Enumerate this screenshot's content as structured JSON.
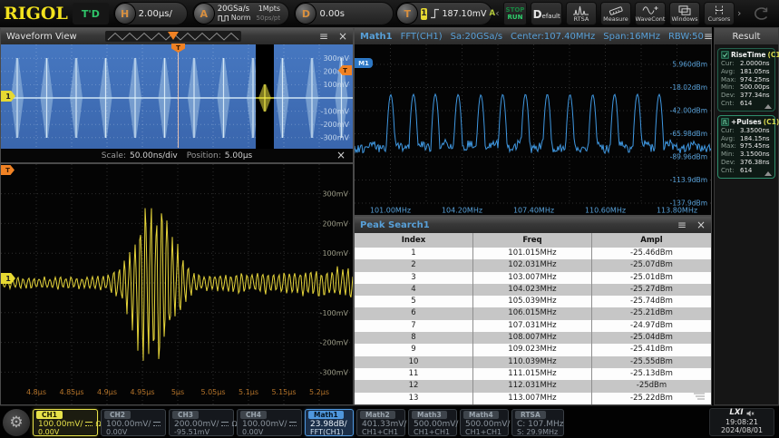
{
  "toolbar": {
    "logo": "RIGOL",
    "trigger_status": "T'D",
    "horizontal": {
      "knob": "H",
      "scale": "2.00μs/"
    },
    "acquire": {
      "knob": "A",
      "rate": "20GSa/s",
      "mode": "Norm",
      "depth": "1Mpts",
      "resolution": "50ps/pt"
    },
    "delay": {
      "knob": "D",
      "value": "0.00s"
    },
    "trigger": {
      "knob": "T",
      "source": "1",
      "level": "187.10mV",
      "mode": "A"
    },
    "nav_left": "‹",
    "nav_right": "›",
    "run_control": {
      "line1": "STOP",
      "line2": "RUN"
    },
    "default_button": {
      "initial": "D",
      "rest": "efault"
    },
    "icon_buttons": [
      {
        "label": "RTSA",
        "icon": "rtsa-spectrum-icon"
      },
      {
        "label": "Measure",
        "icon": "measure-ruler-icon"
      },
      {
        "label": "WaveCont",
        "icon": "wave-continuous-icon"
      },
      {
        "label": "Windows",
        "icon": "windows-layout-icon"
      },
      {
        "label": "Cursors",
        "icon": "cursors-icon"
      }
    ]
  },
  "waveform_view": {
    "title": "Waveform View",
    "menu_icon": "≡",
    "close_icon": "×",
    "y_labels": [
      "300mV",
      "200mV",
      "100mV",
      "-100mV",
      "-200mV",
      "-300mV"
    ],
    "channel_tag": "1",
    "trigger_tag": "T"
  },
  "zoom_bar": {
    "scale_label": "Scale:",
    "scale_value": "50.00ns/div",
    "position_label": "Position:",
    "position_value": "5.00μs",
    "close_icon": "×"
  },
  "zoom_view": {
    "x_labels": [
      "4.8μs",
      "4.85μs",
      "4.9μs",
      "4.95μs",
      "5μs",
      "5.05μs",
      "5.1μs",
      "5.15μs",
      "5.2μs"
    ],
    "y_labels": [
      "300mV",
      "200mV",
      "100mV",
      "-100mV",
      "-200mV",
      "-300mV"
    ],
    "channel_tag": "1",
    "trigger_tag": "T"
  },
  "math_window": {
    "title": "Math1",
    "segments": [
      "FFT(CH1)",
      "Sa:20GSa/s",
      "Center:107.40MHz",
      "Span:16MHz",
      "RBW:50"
    ],
    "marker": "M1",
    "menu_icon": "≡",
    "close_icon": "×",
    "y_labels": [
      "5.960dBm",
      "-18.02dBm",
      "-42.00dBm",
      "-65.98dBm",
      "-89.96dBm",
      "-113.9dBm",
      "-137.9dBm"
    ],
    "x_labels": [
      "101.00MHz",
      "104.20MHz",
      "107.40MHz",
      "110.60MHz",
      "113.80MHz"
    ]
  },
  "peak_search": {
    "title": "Peak Search1",
    "menu_icon": "≡",
    "close_icon": "×",
    "columns": [
      "Index",
      "Freq",
      "Ampl"
    ],
    "rows": [
      [
        "1",
        "101.015MHz",
        "-25.46dBm"
      ],
      [
        "2",
        "102.031MHz",
        "-25.07dBm"
      ],
      [
        "3",
        "103.007MHz",
        "-25.01dBm"
      ],
      [
        "4",
        "104.023MHz",
        "-25.27dBm"
      ],
      [
        "5",
        "105.039MHz",
        "-25.74dBm"
      ],
      [
        "6",
        "106.015MHz",
        "-25.21dBm"
      ],
      [
        "7",
        "107.031MHz",
        "-24.97dBm"
      ],
      [
        "8",
        "108.007MHz",
        "-25.04dBm"
      ],
      [
        "9",
        "109.023MHz",
        "-25.41dBm"
      ],
      [
        "10",
        "110.039MHz",
        "-25.55dBm"
      ],
      [
        "11",
        "111.015MHz",
        "-25.13dBm"
      ],
      [
        "12",
        "112.031MHz",
        "-25dBm"
      ],
      [
        "13",
        "113.007MHz",
        "-25.22dBm"
      ]
    ]
  },
  "result_panel": {
    "title": "Result",
    "measurements": [
      {
        "icon": "checkbox-checked-icon",
        "name": "RiseTime",
        "source": "(C1)",
        "stats": [
          [
            "Cur:",
            "2.0000ns"
          ],
          [
            "Avg:",
            "181.05ns"
          ],
          [
            "Max:",
            "974.25ns"
          ],
          [
            "Min:",
            "500.00ps"
          ],
          [
            "Dev:",
            "377.34ns"
          ],
          [
            "Cnt:",
            "614"
          ]
        ]
      },
      {
        "icon": "pulse-icon",
        "name": "+Pulses",
        "source": "(C1)",
        "stats": [
          [
            "Cur:",
            "3.3500ns"
          ],
          [
            "Avg:",
            "184.15ns"
          ],
          [
            "Max:",
            "975.45ns"
          ],
          [
            "Min:",
            "3.1500ns"
          ],
          [
            "Dev:",
            "376.38ns"
          ],
          [
            "Cnt:",
            "614"
          ]
        ]
      }
    ]
  },
  "bottom_bar": {
    "channels": [
      {
        "name": "CH1",
        "scale": "100.00mV/",
        "dc": true,
        "ohm": true,
        "offset": "0.00V",
        "active": true
      },
      {
        "name": "CH2",
        "scale": "100.00mV/",
        "dc": true,
        "ohm": false,
        "offset": "0.00V",
        "active": false
      },
      {
        "name": "CH3",
        "scale": "200.00mV/",
        "dc": true,
        "ohm": true,
        "offset": "-95.51mV",
        "active": false
      },
      {
        "name": "CH4",
        "scale": "100.00mV/",
        "dc": true,
        "ohm": false,
        "offset": "0.00V",
        "active": false
      }
    ],
    "maths": [
      {
        "name": "Math1",
        "line1": "23.98dB/",
        "line2": "FFT(CH1)",
        "active": true
      },
      {
        "name": "Math2",
        "line1": "401.33mV/",
        "line2": "CH1+CH1",
        "active": false
      },
      {
        "name": "Math3",
        "line1": "500.00mV/",
        "line2": "CH1+CH1",
        "active": false
      },
      {
        "name": "Math4",
        "line1": "500.00mV/",
        "line2": "CH1+CH1",
        "active": false
      },
      {
        "name": "RTSA",
        "line1": "C: 107.MHz",
        "line2": "S: 29.9MHz",
        "active": false
      }
    ],
    "status": {
      "lxi": "LXI",
      "time": "19:08:21",
      "date": "2024/08/01"
    }
  },
  "chart_data": [
    {
      "id": "waveform_view",
      "type": "line",
      "y_ticks_mV": [
        300,
        200,
        100,
        -100,
        -200,
        -300
      ],
      "description": "CH1 periodic RF burst train, 12 bursts visible across 20μs, baseline 0V, burst amplitude ±300mV",
      "burst_count": 12,
      "trigger_level_mV": 187.1,
      "zoom_region": {
        "center_fraction": 0.75,
        "highlight": "yellow burst inside black band"
      }
    },
    {
      "id": "zoom_view",
      "type": "line",
      "x_ticks_us": [
        4.8,
        4.85,
        4.9,
        4.95,
        5.0,
        5.05,
        5.1,
        5.15,
        5.2
      ],
      "y_ticks_mV": [
        300,
        200,
        100,
        -100,
        -200,
        -300
      ],
      "scale": "50.00ns/div",
      "position_us": 5.0,
      "burst": {
        "center_us": 4.965,
        "peak_mV": 255,
        "baseline_noise_mV": 20
      }
    },
    {
      "id": "fft",
      "type": "line",
      "x_ticks_MHz": [
        101.0,
        104.2,
        107.4,
        110.6,
        113.8
      ],
      "y_ticks_dBm": [
        5.96,
        -18.02,
        -42.0,
        -65.98,
        -89.96,
        -113.9,
        -137.9
      ],
      "center_MHz": 107.4,
      "span_MHz": 16,
      "noise_floor_dBm": -75,
      "peaks": [
        {
          "f": 101.015,
          "a": -25.46
        },
        {
          "f": 102.031,
          "a": -25.07
        },
        {
          "f": 103.007,
          "a": -25.01
        },
        {
          "f": 104.023,
          "a": -25.27
        },
        {
          "f": 105.039,
          "a": -25.74
        },
        {
          "f": 106.015,
          "a": -25.21
        },
        {
          "f": 107.031,
          "a": -24.97
        },
        {
          "f": 108.007,
          "a": -25.04
        },
        {
          "f": 109.023,
          "a": -25.41
        },
        {
          "f": 110.039,
          "a": -25.55
        },
        {
          "f": 111.015,
          "a": -25.13
        },
        {
          "f": 112.031,
          "a": -25.0
        },
        {
          "f": 113.007,
          "a": -25.22
        }
      ]
    }
  ]
}
